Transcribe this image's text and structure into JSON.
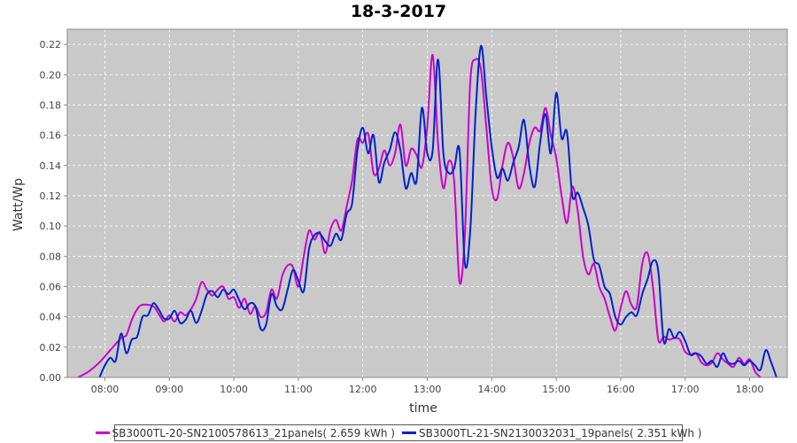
{
  "chart_data": {
    "type": "line",
    "title": "18-3-2017",
    "xlabel": "time",
    "ylabel": "Watt/Wp",
    "xlim": [
      "07:25",
      "18:35"
    ],
    "ylim": [
      0,
      0.23
    ],
    "x_ticks": [
      "08:00",
      "09:00",
      "10:00",
      "11:00",
      "12:00",
      "13:00",
      "14:00",
      "15:00",
      "16:00",
      "17:00",
      "18:00"
    ],
    "y_ticks": [
      "0.00",
      "0.02",
      "0.04",
      "0.06",
      "0.08",
      "0.10",
      "0.12",
      "0.14",
      "0.16",
      "0.18",
      "0.20",
      "0.22"
    ],
    "grid": true,
    "legend_position": "bottom",
    "series": [
      {
        "name": "SB3000TL-20-SN2100578613_21panels( 2.659 kWh )",
        "color": "#cc00cc",
        "points": [
          [
            "07:35",
            0.0
          ],
          [
            "07:45",
            0.004
          ],
          [
            "07:55",
            0.01
          ],
          [
            "08:05",
            0.018
          ],
          [
            "08:15",
            0.026
          ],
          [
            "08:20",
            0.028
          ],
          [
            "08:25",
            0.038
          ],
          [
            "08:30",
            0.045
          ],
          [
            "08:35",
            0.048
          ],
          [
            "08:45",
            0.047
          ],
          [
            "08:50",
            0.042
          ],
          [
            "08:55",
            0.037
          ],
          [
            "09:00",
            0.041
          ],
          [
            "09:05",
            0.037
          ],
          [
            "09:10",
            0.043
          ],
          [
            "09:15",
            0.041
          ],
          [
            "09:20",
            0.045
          ],
          [
            "09:25",
            0.052
          ],
          [
            "09:30",
            0.063
          ],
          [
            "09:35",
            0.058
          ],
          [
            "09:40",
            0.054
          ],
          [
            "09:45",
            0.058
          ],
          [
            "09:50",
            0.06
          ],
          [
            "09:55",
            0.052
          ],
          [
            "10:00",
            0.053
          ],
          [
            "10:05",
            0.046
          ],
          [
            "10:10",
            0.052
          ],
          [
            "10:15",
            0.042
          ],
          [
            "10:20",
            0.047
          ],
          [
            "10:25",
            0.04
          ],
          [
            "10:30",
            0.043
          ],
          [
            "10:35",
            0.058
          ],
          [
            "10:40",
            0.052
          ],
          [
            "10:45",
            0.067
          ],
          [
            "10:50",
            0.074
          ],
          [
            "10:55",
            0.073
          ],
          [
            "11:00",
            0.06
          ],
          [
            "11:05",
            0.08
          ],
          [
            "11:10",
            0.097
          ],
          [
            "11:15",
            0.091
          ],
          [
            "11:20",
            0.096
          ],
          [
            "11:25",
            0.082
          ],
          [
            "11:30",
            0.098
          ],
          [
            "11:35",
            0.104
          ],
          [
            "11:40",
            0.097
          ],
          [
            "11:45",
            0.113
          ],
          [
            "11:50",
            0.13
          ],
          [
            "11:55",
            0.157
          ],
          [
            "12:00",
            0.155
          ],
          [
            "12:05",
            0.161
          ],
          [
            "12:10",
            0.135
          ],
          [
            "12:15",
            0.138
          ],
          [
            "12:20",
            0.15
          ],
          [
            "12:25",
            0.14
          ],
          [
            "12:30",
            0.148
          ],
          [
            "12:35",
            0.167
          ],
          [
            "12:40",
            0.14
          ],
          [
            "12:45",
            0.151
          ],
          [
            "12:50",
            0.147
          ],
          [
            "12:55",
            0.139
          ],
          [
            "13:00",
            0.166
          ],
          [
            "13:05",
            0.213
          ],
          [
            "13:10",
            0.155
          ],
          [
            "13:15",
            0.125
          ],
          [
            "13:20",
            0.143
          ],
          [
            "13:25",
            0.13
          ],
          [
            "13:30",
            0.063
          ],
          [
            "13:35",
            0.095
          ],
          [
            "13:40",
            0.195
          ],
          [
            "13:45",
            0.21
          ],
          [
            "13:50",
            0.203
          ],
          [
            "13:55",
            0.165
          ],
          [
            "14:00",
            0.125
          ],
          [
            "14:05",
            0.118
          ],
          [
            "14:10",
            0.14
          ],
          [
            "14:15",
            0.155
          ],
          [
            "14:20",
            0.145
          ],
          [
            "14:25",
            0.125
          ],
          [
            "14:30",
            0.135
          ],
          [
            "14:35",
            0.155
          ],
          [
            "14:40",
            0.165
          ],
          [
            "14:45",
            0.163
          ],
          [
            "14:50",
            0.178
          ],
          [
            "14:55",
            0.16
          ],
          [
            "15:00",
            0.145
          ],
          [
            "15:05",
            0.12
          ],
          [
            "15:10",
            0.102
          ],
          [
            "15:15",
            0.126
          ],
          [
            "15:20",
            0.11
          ],
          [
            "15:25",
            0.08
          ],
          [
            "15:30",
            0.068
          ],
          [
            "15:35",
            0.075
          ],
          [
            "15:40",
            0.06
          ],
          [
            "15:45",
            0.052
          ],
          [
            "15:50",
            0.04
          ],
          [
            "15:55",
            0.031
          ],
          [
            "16:00",
            0.046
          ],
          [
            "16:05",
            0.057
          ],
          [
            "16:10",
            0.048
          ],
          [
            "16:15",
            0.047
          ],
          [
            "16:20",
            0.075
          ],
          [
            "16:25",
            0.082
          ],
          [
            "16:30",
            0.06
          ],
          [
            "16:35",
            0.025
          ],
          [
            "16:40",
            0.027
          ],
          [
            "16:45",
            0.025
          ],
          [
            "16:50",
            0.026
          ],
          [
            "16:55",
            0.025
          ],
          [
            "17:00",
            0.017
          ],
          [
            "17:05",
            0.015
          ],
          [
            "17:10",
            0.016
          ],
          [
            "17:15",
            0.01
          ],
          [
            "17:20",
            0.008
          ],
          [
            "17:25",
            0.01
          ],
          [
            "17:30",
            0.016
          ],
          [
            "17:35",
            0.012
          ],
          [
            "17:40",
            0.009
          ],
          [
            "17:45",
            0.007
          ],
          [
            "17:50",
            0.013
          ],
          [
            "17:55",
            0.009
          ],
          [
            "18:00",
            0.012
          ],
          [
            "18:05",
            0.004
          ],
          [
            "18:10",
            0.0
          ]
        ]
      },
      {
        "name": "SB3000TL-21-SN2130032031_19panels( 2.351 kWh )",
        "color": "#0022cc",
        "points": [
          [
            "07:55",
            0.0
          ],
          [
            "08:00",
            0.008
          ],
          [
            "08:05",
            0.013
          ],
          [
            "08:10",
            0.011
          ],
          [
            "08:15",
            0.029
          ],
          [
            "08:20",
            0.016
          ],
          [
            "08:25",
            0.025
          ],
          [
            "08:30",
            0.027
          ],
          [
            "08:35",
            0.04
          ],
          [
            "08:40",
            0.041
          ],
          [
            "08:45",
            0.049
          ],
          [
            "08:50",
            0.045
          ],
          [
            "08:55",
            0.039
          ],
          [
            "09:00",
            0.039
          ],
          [
            "09:05",
            0.044
          ],
          [
            "09:10",
            0.036
          ],
          [
            "09:15",
            0.038
          ],
          [
            "09:20",
            0.044
          ],
          [
            "09:25",
            0.036
          ],
          [
            "09:30",
            0.044
          ],
          [
            "09:35",
            0.055
          ],
          [
            "09:40",
            0.057
          ],
          [
            "09:45",
            0.053
          ],
          [
            "09:50",
            0.058
          ],
          [
            "09:55",
            0.055
          ],
          [
            "10:00",
            0.058
          ],
          [
            "10:05",
            0.051
          ],
          [
            "10:10",
            0.045
          ],
          [
            "10:15",
            0.049
          ],
          [
            "10:20",
            0.047
          ],
          [
            "10:25",
            0.032
          ],
          [
            "10:30",
            0.035
          ],
          [
            "10:35",
            0.055
          ],
          [
            "10:40",
            0.047
          ],
          [
            "10:45",
            0.045
          ],
          [
            "10:50",
            0.058
          ],
          [
            "10:55",
            0.071
          ],
          [
            "11:00",
            0.064
          ],
          [
            "11:05",
            0.057
          ],
          [
            "11:10",
            0.085
          ],
          [
            "11:15",
            0.094
          ],
          [
            "11:20",
            0.095
          ],
          [
            "11:25",
            0.09
          ],
          [
            "11:30",
            0.087
          ],
          [
            "11:35",
            0.095
          ],
          [
            "11:40",
            0.091
          ],
          [
            "11:45",
            0.108
          ],
          [
            "11:50",
            0.115
          ],
          [
            "11:55",
            0.15
          ],
          [
            "12:00",
            0.165
          ],
          [
            "12:05",
            0.148
          ],
          [
            "12:10",
            0.16
          ],
          [
            "12:15",
            0.129
          ],
          [
            "12:20",
            0.142
          ],
          [
            "12:25",
            0.15
          ],
          [
            "12:30",
            0.162
          ],
          [
            "12:35",
            0.15
          ],
          [
            "12:40",
            0.125
          ],
          [
            "12:45",
            0.135
          ],
          [
            "12:50",
            0.13
          ],
          [
            "12:55",
            0.178
          ],
          [
            "13:00",
            0.148
          ],
          [
            "13:05",
            0.15
          ],
          [
            "13:10",
            0.21
          ],
          [
            "13:15",
            0.148
          ],
          [
            "13:20",
            0.135
          ],
          [
            "13:25",
            0.138
          ],
          [
            "13:30",
            0.15
          ],
          [
            "13:35",
            0.075
          ],
          [
            "13:40",
            0.097
          ],
          [
            "13:45",
            0.175
          ],
          [
            "13:50",
            0.219
          ],
          [
            "13:55",
            0.185
          ],
          [
            "14:00",
            0.152
          ],
          [
            "14:05",
            0.132
          ],
          [
            "14:10",
            0.138
          ],
          [
            "14:15",
            0.13
          ],
          [
            "14:20",
            0.142
          ],
          [
            "14:25",
            0.152
          ],
          [
            "14:30",
            0.17
          ],
          [
            "14:35",
            0.14
          ],
          [
            "14:40",
            0.126
          ],
          [
            "14:45",
            0.155
          ],
          [
            "14:50",
            0.174
          ],
          [
            "14:55",
            0.148
          ],
          [
            "15:00",
            0.188
          ],
          [
            "15:05",
            0.158
          ],
          [
            "15:10",
            0.162
          ],
          [
            "15:15",
            0.12
          ],
          [
            "15:20",
            0.122
          ],
          [
            "15:25",
            0.112
          ],
          [
            "15:30",
            0.1
          ],
          [
            "15:35",
            0.078
          ],
          [
            "15:40",
            0.074
          ],
          [
            "15:45",
            0.06
          ],
          [
            "15:50",
            0.055
          ],
          [
            "15:55",
            0.04
          ],
          [
            "16:00",
            0.035
          ],
          [
            "16:05",
            0.04
          ],
          [
            "16:10",
            0.043
          ],
          [
            "16:15",
            0.041
          ],
          [
            "16:20",
            0.055
          ],
          [
            "16:25",
            0.065
          ],
          [
            "16:30",
            0.077
          ],
          [
            "16:35",
            0.07
          ],
          [
            "16:40",
            0.024
          ],
          [
            "16:45",
            0.032
          ],
          [
            "16:50",
            0.026
          ],
          [
            "16:55",
            0.03
          ],
          [
            "17:00",
            0.024
          ],
          [
            "17:05",
            0.015
          ],
          [
            "17:10",
            0.016
          ],
          [
            "17:15",
            0.014
          ],
          [
            "17:20",
            0.009
          ],
          [
            "17:25",
            0.011
          ],
          [
            "17:30",
            0.007
          ],
          [
            "17:35",
            0.016
          ],
          [
            "17:40",
            0.01
          ],
          [
            "17:45",
            0.009
          ],
          [
            "17:50",
            0.011
          ],
          [
            "17:55",
            0.008
          ],
          [
            "18:00",
            0.011
          ],
          [
            "18:05",
            0.008
          ],
          [
            "18:10",
            0.005
          ],
          [
            "18:15",
            0.018
          ],
          [
            "18:20",
            0.01
          ],
          [
            "18:25",
            0.0
          ]
        ]
      }
    ]
  }
}
